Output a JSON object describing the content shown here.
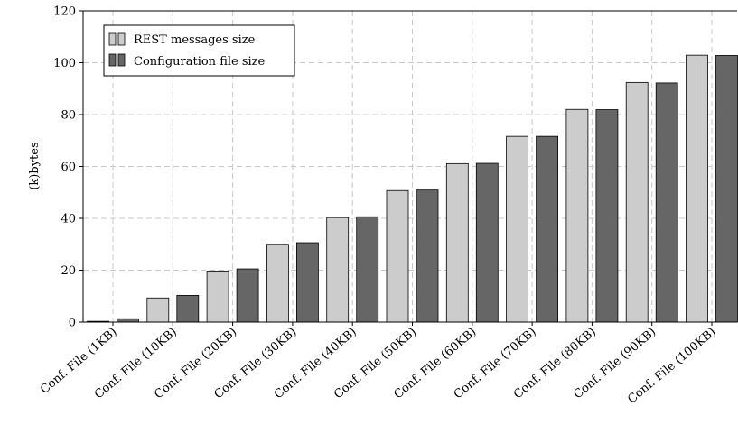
{
  "chart_data": {
    "type": "bar",
    "title": "",
    "xlabel": "",
    "ylabel": "(k)bytes",
    "ylim": [
      0,
      120
    ],
    "yticks": [
      0,
      20,
      40,
      60,
      80,
      100,
      120
    ],
    "grid": true,
    "legend_position": "top-left",
    "categories": [
      "Conf. File (1KB)",
      "Conf. File (10KB)",
      "Conf. File (20KB)",
      "Conf. File (30KB)",
      "Conf. File (40KB)",
      "Conf. File (50KB)",
      "Conf. File (60KB)",
      "Conf. File (70KB)",
      "Conf. File (80KB)",
      "Conf. File (90KB)",
      "Conf. File (100KB)"
    ],
    "series": [
      {
        "name": "REST messages size",
        "color": "#cccccc",
        "values": [
          0.3,
          9.3,
          19.7,
          30.0,
          40.3,
          50.7,
          61.1,
          71.6,
          82.0,
          92.4,
          102.9
        ]
      },
      {
        "name": "Configuration file size",
        "color": "#666666",
        "values": [
          1.3,
          10.3,
          20.5,
          30.6,
          40.6,
          50.9,
          61.2,
          71.6,
          81.9,
          92.2,
          102.8
        ]
      }
    ]
  }
}
